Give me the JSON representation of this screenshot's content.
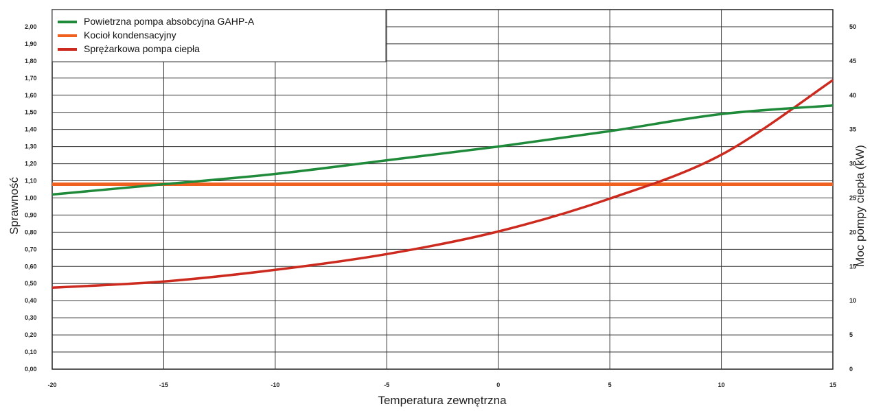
{
  "chart_data": {
    "type": "line",
    "xlabel": "Temperatura zewnętrzna",
    "ylabel": "Sprawność",
    "y2label": "Moc pompy ciepła (kW)",
    "xlim": [
      -20,
      15
    ],
    "ylim": [
      0,
      2.1
    ],
    "y2lim": [
      0,
      52.5
    ],
    "grid": true,
    "legend_position": "top-left",
    "x_ticks": [
      "-20",
      "-15",
      "-10",
      "-5",
      "0",
      "5",
      "10",
      "15"
    ],
    "x_tick_values": [
      -20,
      -15,
      -10,
      -5,
      0,
      5,
      10,
      15
    ],
    "y_ticks": [
      "0,00",
      "0,10",
      "0,20",
      "0,30",
      "0,40",
      "0,50",
      "0,60",
      "0,70",
      "0,80",
      "0,90",
      "1,00",
      "1,10",
      "1,20",
      "1,30",
      "1,40",
      "1,50",
      "1,60",
      "1,70",
      "1,80",
      "1,90",
      "2,00"
    ],
    "y_tick_values": [
      0,
      0.1,
      0.2,
      0.3,
      0.4,
      0.5,
      0.6,
      0.7,
      0.8,
      0.9,
      1.0,
      1.1,
      1.2,
      1.3,
      1.4,
      1.5,
      1.6,
      1.7,
      1.8,
      1.9,
      2.0
    ],
    "y2_ticks": [
      "0",
      "5",
      "10",
      "15",
      "20",
      "25",
      "30",
      "35",
      "40",
      "45",
      "50"
    ],
    "y2_tick_values": [
      0,
      5,
      10,
      15,
      20,
      25,
      30,
      35,
      40,
      45,
      50
    ],
    "series": [
      {
        "name": "Powietrzna pompa absobcyjna GAHP-A",
        "color": "#1e8a3a",
        "axis": "left",
        "x": [
          -20,
          -15,
          -10,
          -5,
          0,
          5,
          10,
          15
        ],
        "y": [
          1.02,
          1.08,
          1.14,
          1.22,
          1.3,
          1.39,
          1.49,
          1.54
        ]
      },
      {
        "name": "Kocioł kondensacyjny",
        "color": "#f0601e",
        "axis": "left",
        "x": [
          -20,
          15
        ],
        "y": [
          1.08,
          1.08
        ]
      },
      {
        "name": "Sprężarkowa pompa ciepła",
        "color": "#cc2a1e",
        "axis": "right",
        "x": [
          -20,
          -15,
          -10,
          -5,
          0,
          5,
          10,
          15
        ],
        "y": [
          11.9,
          12.8,
          14.5,
          16.8,
          20.1,
          24.9,
          31.3,
          42.2
        ]
      }
    ]
  }
}
